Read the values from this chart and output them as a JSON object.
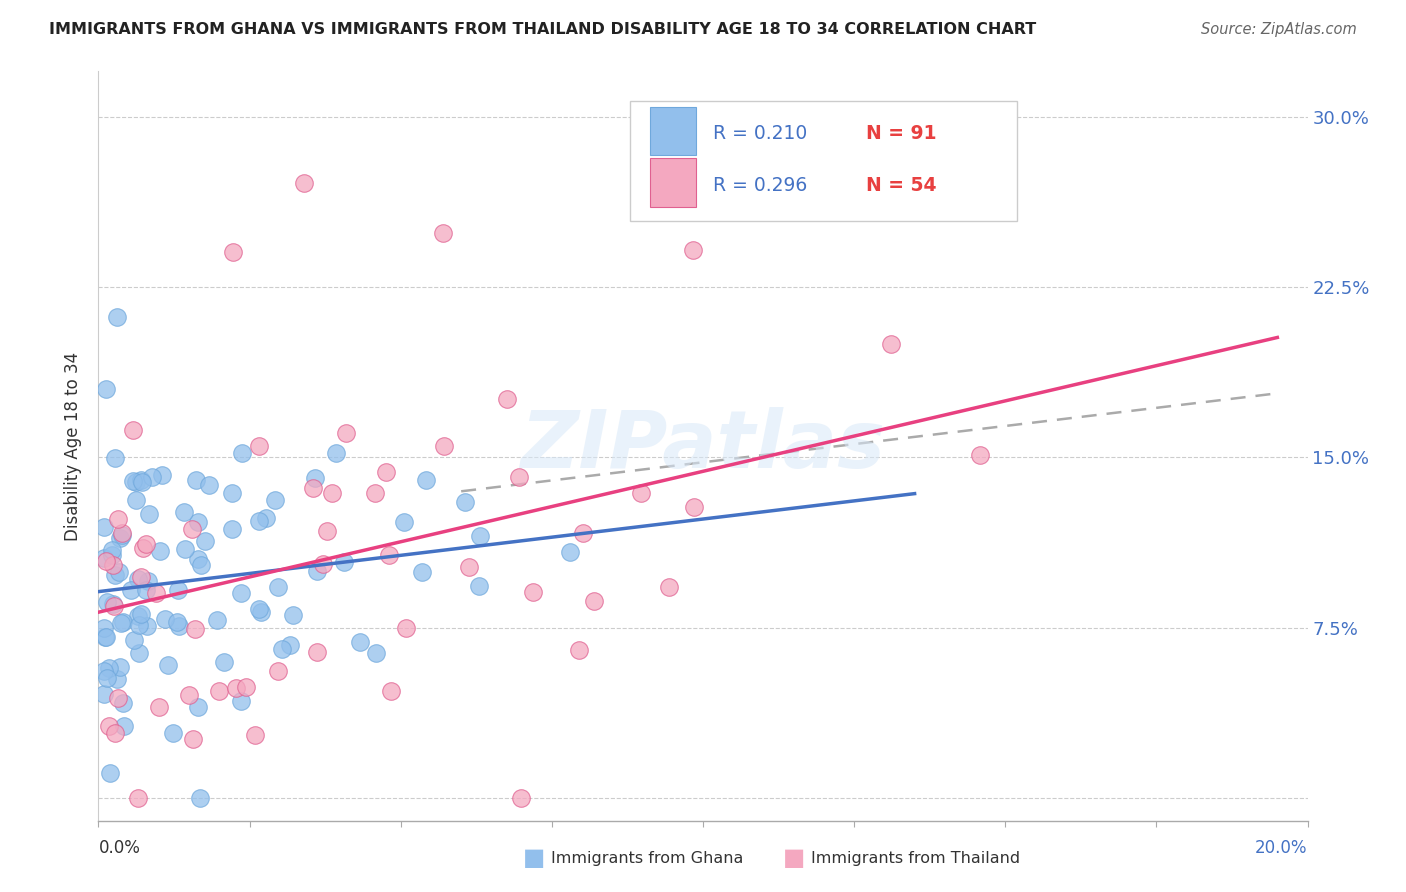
{
  "title": "IMMIGRANTS FROM GHANA VS IMMIGRANTS FROM THAILAND DISABILITY AGE 18 TO 34 CORRELATION CHART",
  "source": "Source: ZipAtlas.com",
  "ylabel": "Disability Age 18 to 34",
  "yticks": [
    0.0,
    0.075,
    0.15,
    0.225,
    0.3
  ],
  "ytick_labels": [
    "",
    "7.5%",
    "15.0%",
    "22.5%",
    "30.0%"
  ],
  "xlim": [
    0.0,
    0.2
  ],
  "ylim": [
    -0.01,
    0.32
  ],
  "ghana_color": "#92BFEC",
  "ghana_edge": "#6FA8DC",
  "thailand_color": "#F4A8C0",
  "thailand_edge": "#E06090",
  "trend_ghana_color": "#4472C4",
  "trend_thailand_color": "#E84080",
  "dash_color": "#AAAAAA",
  "ghana_R": 0.21,
  "ghana_N": 91,
  "thailand_R": 0.296,
  "thailand_N": 54,
  "watermark": "ZIPatlas",
  "background_color": "#ffffff",
  "grid_color": "#cccccc",
  "legend_R_color": "#4472C4",
  "legend_N_color": "#E84040"
}
